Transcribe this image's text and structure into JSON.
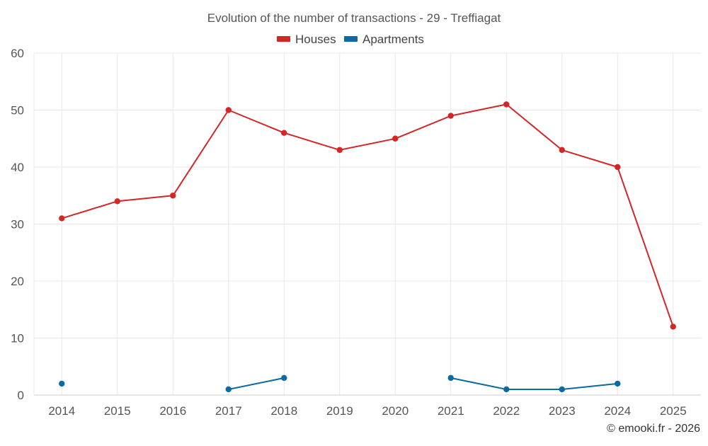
{
  "chart_data": {
    "type": "line",
    "title": "Evolution of the number of transactions - 29 - Treffiagat",
    "categories": [
      "2014",
      "2015",
      "2016",
      "2017",
      "2018",
      "2019",
      "2020",
      "2021",
      "2022",
      "2023",
      "2024",
      "2025"
    ],
    "series": [
      {
        "name": "Houses",
        "color": "#d32626",
        "values": [
          31,
          34,
          35,
          50,
          46,
          43,
          45,
          49,
          51,
          43,
          40,
          12
        ]
      },
      {
        "name": "Apartments",
        "color": "#0a6aa1",
        "values": [
          2,
          null,
          null,
          1,
          3,
          null,
          null,
          3,
          1,
          1,
          2,
          null
        ]
      }
    ],
    "ylim": [
      0,
      60
    ],
    "yticks": [
      0,
      10,
      20,
      30,
      40,
      50,
      60
    ],
    "xlabel": "",
    "ylabel": "",
    "grid": true,
    "legend_position": "top-center"
  },
  "credit": "© emooki.fr - 2026"
}
